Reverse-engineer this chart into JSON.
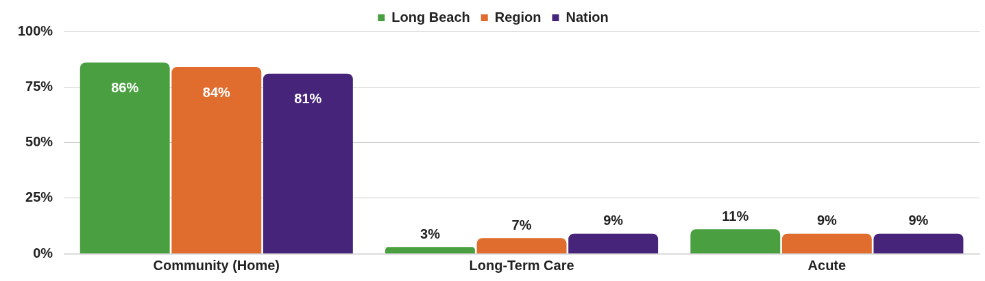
{
  "chart_data": {
    "type": "bar",
    "categories": [
      "Community (Home)",
      "Long-Term Care",
      "Acute"
    ],
    "series": [
      {
        "name": "Long Beach",
        "color": "#4aa040",
        "values": [
          86,
          3,
          11
        ],
        "value_labels": [
          "86%",
          "3%",
          "11%"
        ]
      },
      {
        "name": "Region",
        "color": "#e06c2e",
        "values": [
          84,
          7,
          9
        ],
        "value_labels": [
          "84%",
          "7%",
          "9%"
        ]
      },
      {
        "name": "Nation",
        "color": "#45247a",
        "values": [
          81,
          9,
          9
        ],
        "value_labels": [
          "81%",
          "9%",
          "9%"
        ]
      }
    ],
    "ylim": [
      0,
      100
    ],
    "yticks": [
      {
        "value": 0,
        "label": "0%"
      },
      {
        "value": 25,
        "label": "25%"
      },
      {
        "value": 50,
        "label": "50%"
      },
      {
        "value": 75,
        "label": "75%"
      },
      {
        "value": 100,
        "label": "100%"
      }
    ],
    "grid": "y",
    "legend": "top"
  }
}
